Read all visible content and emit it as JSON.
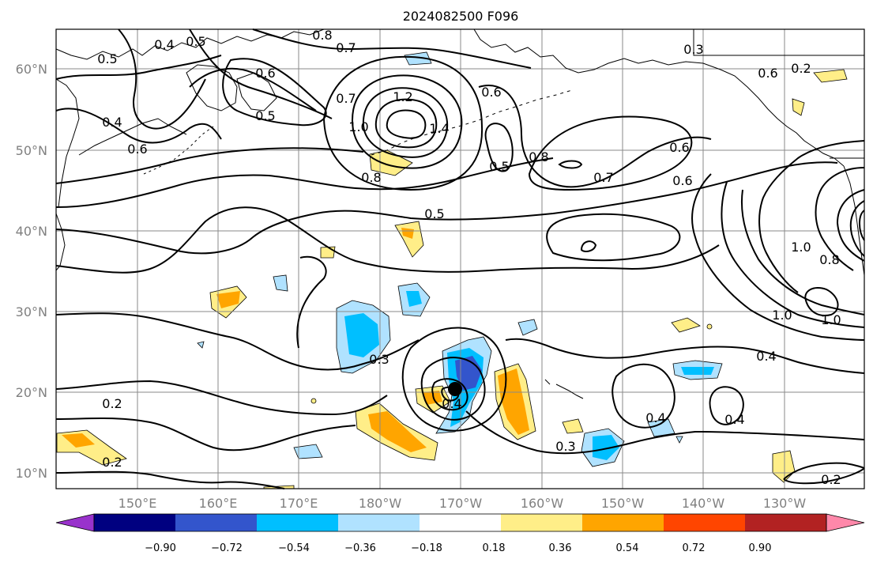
{
  "title": "2024082500 F096",
  "map": {
    "lon_labels": [
      "150°E",
      "160°E",
      "170°E",
      "180°W",
      "170°W",
      "160°W",
      "150°W",
      "140°W",
      "130°W"
    ],
    "lat_labels": [
      "60°N",
      "50°N",
      "40°N",
      "30°N",
      "20°N",
      "10°N"
    ],
    "center_marker": "storm-center-dot"
  },
  "colorbar": {
    "ticks": [
      "−0.90",
      "−0.72",
      "−0.54",
      "−0.36",
      "−0.18",
      "0.18",
      "0.36",
      "0.54",
      "0.72",
      "0.90"
    ],
    "colors": [
      "#9932CC",
      "#000080",
      "#3355CC",
      "#00BFFF",
      "#B0E2FF",
      "#FFFFFF",
      "#FFEE88",
      "#FFA500",
      "#FF4500",
      "#B22222",
      "#FF88AA"
    ]
  },
  "contour_labels": [
    "0.4",
    "0.5",
    "0.8",
    "0.7",
    "0.3",
    "0.2",
    "0.5",
    "0.6",
    "0.4",
    "0.5",
    "0.6",
    "0.6",
    "0.7",
    "1.0",
    "1.2",
    "1.4",
    "0.6",
    "0.8",
    "0.5",
    "0.8",
    "0.7",
    "0.6",
    "0.6",
    "0.5",
    "1.0",
    "0.8",
    "1.0",
    "1.0",
    "0.4",
    "0.3",
    "0.4",
    "0.2",
    "0.2",
    "0.4",
    "0.4",
    "0.3",
    "0.2"
  ],
  "colors": {
    "grid": "#8a8a8a",
    "axis_label": "#808080",
    "contour": "#000000"
  }
}
